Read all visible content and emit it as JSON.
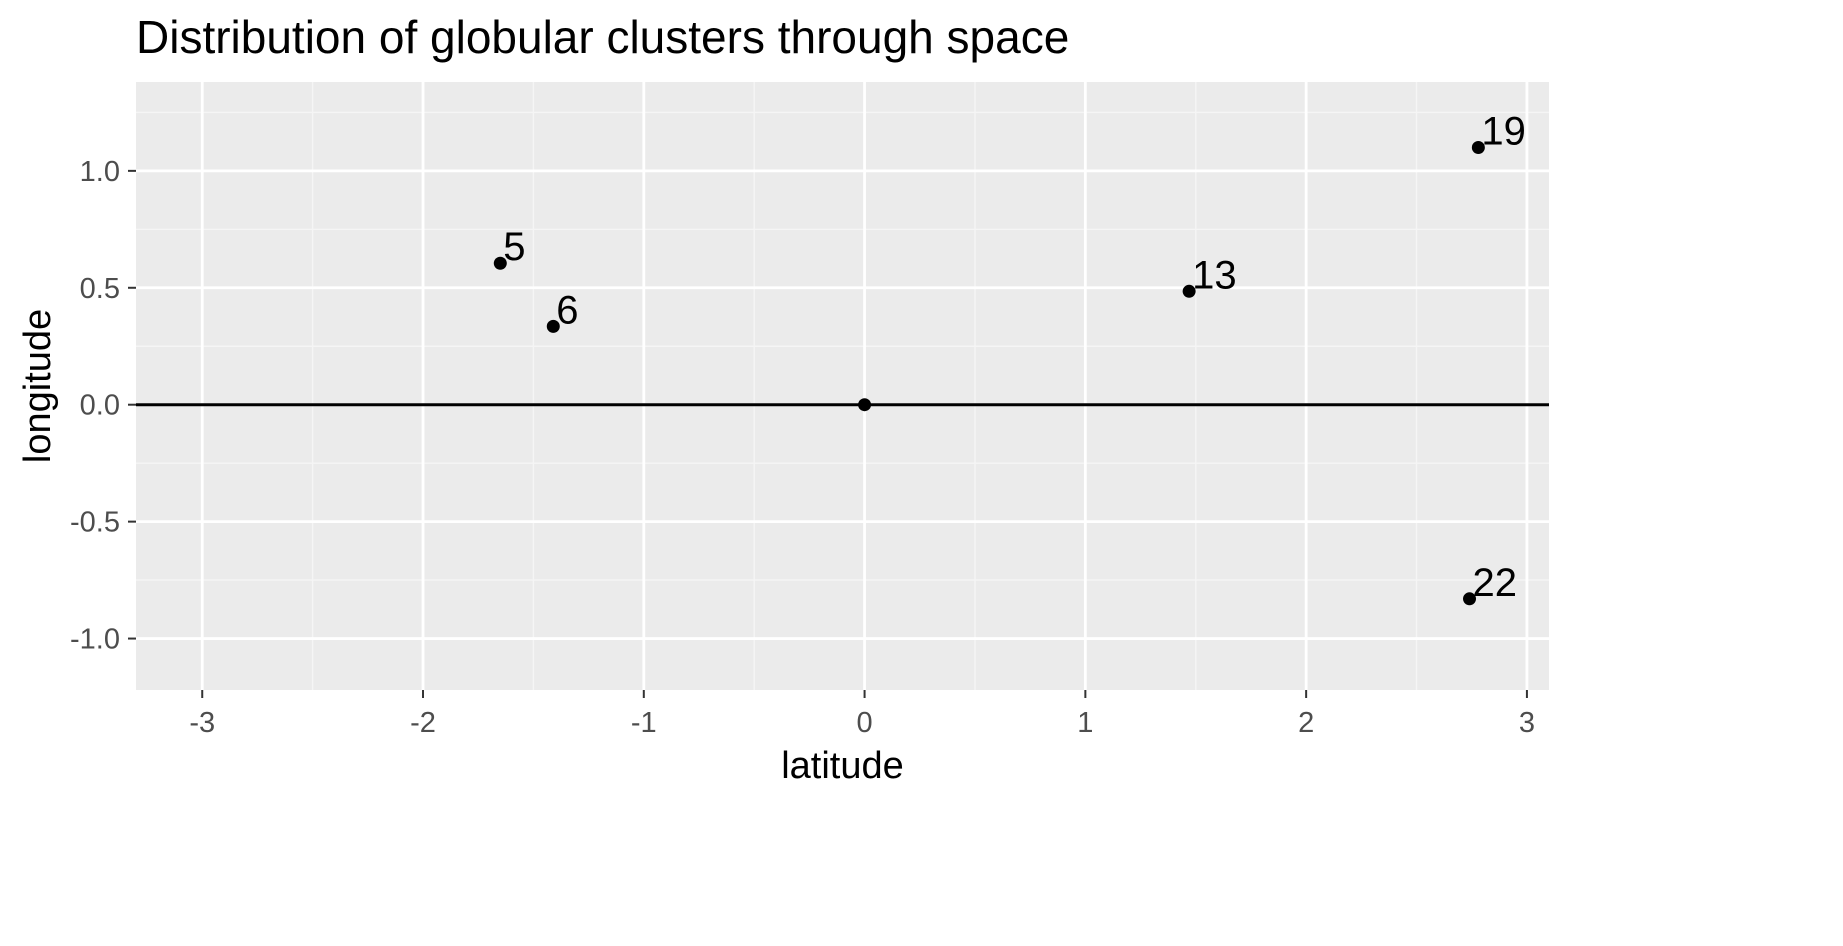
{
  "chart_data": {
    "type": "scatter",
    "title": "Distribution of globular clusters through space",
    "xlabel": "latitude",
    "ylabel": "longitude",
    "xlim": [
      -3.3,
      3.1
    ],
    "ylim": [
      -1.22,
      1.38
    ],
    "x_major_ticks": [
      -3,
      -2,
      -1,
      0,
      1,
      2,
      3
    ],
    "x_tick_labels": [
      "-3",
      "-2",
      "-1",
      "0",
      "1",
      "2",
      "3"
    ],
    "x_minor_ticks": [
      -2.5,
      -1.5,
      -0.5,
      0.5,
      1.5,
      2.5
    ],
    "y_major_ticks": [
      -1.0,
      -0.5,
      0.0,
      0.5,
      1.0
    ],
    "y_tick_labels": [
      "-1.0",
      "-0.5",
      "0.0",
      "0.5",
      "1.0"
    ],
    "y_minor_ticks": [
      -0.75,
      -0.25,
      0.25,
      0.75,
      1.25
    ],
    "reference_line_y": 0,
    "grid": true,
    "colors": {
      "panel_background": "#ebebeb",
      "grid_major": "#ffffff",
      "grid_minor": "#f5f5f5",
      "point": "#000000",
      "tick_text": "#4d4d4d",
      "tick_mark": "#333333"
    },
    "points": [
      {
        "x": 0.0,
        "y": 0.0,
        "label": ""
      },
      {
        "x": -1.65,
        "y": 0.605,
        "label": "5"
      },
      {
        "x": -1.41,
        "y": 0.335,
        "label": "6"
      },
      {
        "x": 1.47,
        "y": 0.485,
        "label": "13"
      },
      {
        "x": 2.78,
        "y": 1.1,
        "label": "19"
      },
      {
        "x": 2.74,
        "y": -0.83,
        "label": "22"
      }
    ]
  }
}
